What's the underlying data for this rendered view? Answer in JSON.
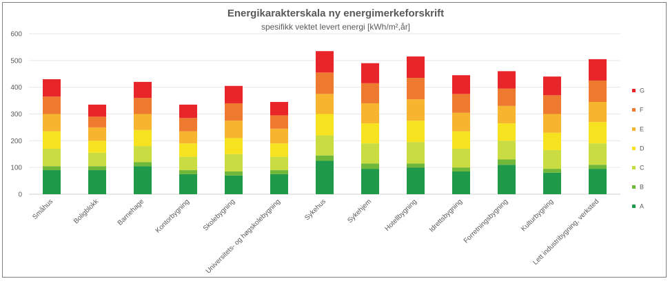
{
  "chart_data": {
    "type": "bar",
    "stacked": true,
    "title": "Energikarakterskala ny energimerkeforskrift",
    "subtitle": "spesifikk vektet levert energi [kWh/m²,år]",
    "xlabel": "",
    "ylabel": "",
    "ylim": [
      0,
      600
    ],
    "yticks": [
      0,
      100,
      200,
      300,
      400,
      500,
      600
    ],
    "grid": true,
    "legend_position": "right",
    "categories": [
      "Småhus",
      "Boligblokk",
      "Barnehage",
      "Kontorbygning",
      "Skolebygning",
      "Universitets- og høgskolebygning",
      "Sykehus",
      "Sykehjem",
      "Hotellbygning",
      "Idrettsbygning",
      "Forretningsbygning",
      "Kulturbygning",
      "Lett industribygning, verksted"
    ],
    "series": [
      {
        "name": "A",
        "color": "#1e9a4a",
        "values": [
          90,
          90,
          105,
          75,
          70,
          75,
          125,
          95,
          100,
          85,
          110,
          80,
          95
        ]
      },
      {
        "name": "B",
        "color": "#6fb83a",
        "values": [
          15,
          15,
          15,
          15,
          15,
          15,
          20,
          20,
          15,
          15,
          20,
          15,
          15
        ]
      },
      {
        "name": "C",
        "color": "#c9dc42",
        "values": [
          65,
          50,
          60,
          50,
          65,
          50,
          75,
          75,
          80,
          70,
          70,
          70,
          80
        ]
      },
      {
        "name": "D",
        "color": "#f6e21f",
        "values": [
          65,
          45,
          60,
          50,
          60,
          50,
          80,
          75,
          80,
          65,
          65,
          65,
          80
        ]
      },
      {
        "name": "E",
        "color": "#f7b52f",
        "values": [
          65,
          50,
          60,
          45,
          65,
          55,
          75,
          75,
          80,
          70,
          65,
          70,
          75
        ]
      },
      {
        "name": "F",
        "color": "#ee7a30",
        "values": [
          65,
          40,
          60,
          50,
          65,
          50,
          80,
          75,
          80,
          70,
          65,
          70,
          80
        ]
      },
      {
        "name": "G",
        "color": "#e8262a",
        "values": [
          65,
          45,
          60,
          50,
          65,
          50,
          80,
          75,
          80,
          70,
          65,
          70,
          80
        ]
      }
    ]
  }
}
